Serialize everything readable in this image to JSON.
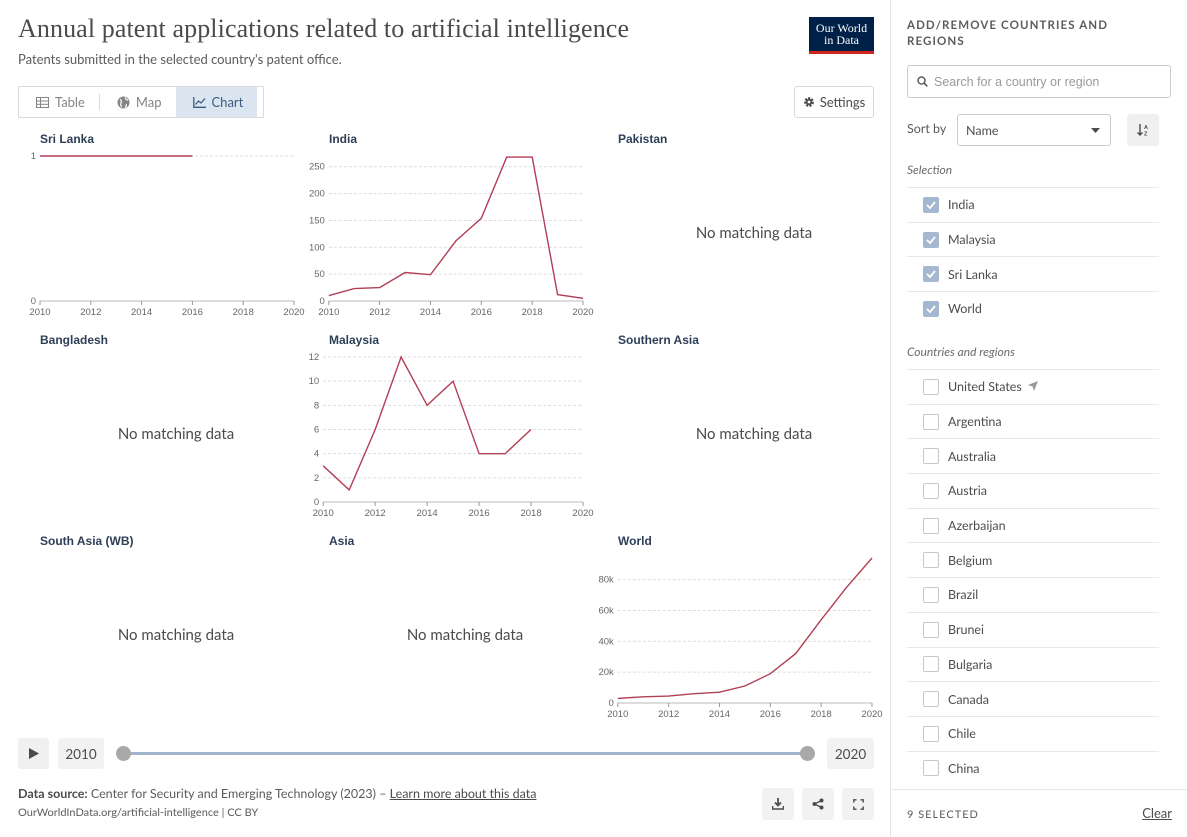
{
  "header": {
    "title": "Annual patent applications related to artificial intelligence",
    "subtitle": "Patents submitted in the selected country's patent office.",
    "logo_line1": "Our World",
    "logo_line2": "in Data"
  },
  "tabs": [
    {
      "label": "Table",
      "icon": "table-icon",
      "active": false
    },
    {
      "label": "Map",
      "icon": "globe-icon",
      "active": false
    },
    {
      "label": "Chart",
      "icon": "line-chart-icon",
      "active": true
    }
  ],
  "settings_label": "Settings",
  "no_data_text": "No matching data",
  "line_color": "#b13f55",
  "chart_data": [
    {
      "type": "line",
      "title": "Sri Lanka",
      "x": [
        2010,
        2011,
        2012,
        2013,
        2014,
        2015,
        2016
      ],
      "y": [
        1,
        1,
        1,
        1,
        1,
        1,
        1
      ],
      "ylim": [
        0,
        1
      ],
      "yticks": [
        0,
        1
      ],
      "ytick_labels": [
        "0",
        "1"
      ],
      "xticks": [
        2010,
        2012,
        2014,
        2016,
        2018,
        2020
      ],
      "xlim": [
        2010,
        2020
      ]
    },
    {
      "type": "line",
      "title": "India",
      "x": [
        2010,
        2011,
        2012,
        2013,
        2014,
        2015,
        2016,
        2017,
        2018,
        2019,
        2020
      ],
      "y": [
        10,
        23,
        25,
        53,
        49,
        112,
        154,
        268,
        268,
        12,
        5
      ],
      "ylim": [
        0,
        270
      ],
      "yticks": [
        0,
        50,
        100,
        150,
        200,
        250
      ],
      "ytick_labels": [
        "0",
        "50",
        "100",
        "150",
        "200",
        "250"
      ],
      "xticks": [
        2010,
        2012,
        2014,
        2016,
        2018,
        2020
      ],
      "xlim": [
        2010,
        2020
      ]
    },
    {
      "type": "line",
      "title": "Pakistan",
      "x": [],
      "y": [],
      "no_data": true
    },
    {
      "type": "line",
      "title": "Bangladesh",
      "x": [],
      "y": [],
      "no_data": true
    },
    {
      "type": "line",
      "title": "Malaysia",
      "x": [
        2010,
        2011,
        2012,
        2013,
        2014,
        2015,
        2016,
        2017,
        2018
      ],
      "y": [
        3,
        1,
        6,
        12,
        8,
        10,
        4,
        4,
        6
      ],
      "ylim": [
        0,
        12
      ],
      "yticks": [
        0,
        2,
        4,
        6,
        8,
        10,
        12
      ],
      "ytick_labels": [
        "0",
        "2",
        "4",
        "6",
        "8",
        "10",
        "12"
      ],
      "xticks": [
        2010,
        2012,
        2014,
        2016,
        2018,
        2020
      ],
      "xlim": [
        2010,
        2020
      ]
    },
    {
      "type": "line",
      "title": "Southern Asia",
      "x": [],
      "y": [],
      "no_data": true
    },
    {
      "type": "line",
      "title": "South Asia (WB)",
      "x": [],
      "y": [],
      "no_data": true
    },
    {
      "type": "line",
      "title": "Asia",
      "x": [],
      "y": [],
      "no_data": true
    },
    {
      "type": "line",
      "title": "World",
      "x": [
        2010,
        2011,
        2012,
        2013,
        2014,
        2015,
        2016,
        2017,
        2018,
        2019,
        2020
      ],
      "y": [
        3000,
        4000,
        4500,
        6000,
        7000,
        11000,
        19000,
        32000,
        54000,
        75000,
        94000
      ],
      "ylim": [
        0,
        94000
      ],
      "yticks": [
        0,
        20000,
        40000,
        60000,
        80000
      ],
      "ytick_labels": [
        "0",
        "20k",
        "40k",
        "60k",
        "80k"
      ],
      "xticks": [
        2010,
        2012,
        2014,
        2016,
        2018,
        2020
      ],
      "xlim": [
        2010,
        2020
      ]
    }
  ],
  "timeline": {
    "start_year": "2010",
    "end_year": "2020"
  },
  "source": {
    "label": "Data source:",
    "text": "Center for Security and Emerging Technology (2023) – ",
    "link": "Learn more about this data",
    "license": "OurWorldInData.org/artificial-intelligence | CC BY"
  },
  "sidebar": {
    "heading": "Add/remove countries and regions",
    "search_placeholder": "Search for a country or region",
    "sort_label": "Sort by",
    "sort_value": "Name",
    "selection_label": "Selection",
    "selected": [
      "India",
      "Malaysia",
      "Sri Lanka",
      "World"
    ],
    "others_label": "Countries and regions",
    "others": [
      "United States",
      "Argentina",
      "Australia",
      "Austria",
      "Azerbaijan",
      "Belgium",
      "Brazil",
      "Brunei",
      "Bulgaria",
      "Canada",
      "Chile",
      "China"
    ],
    "selected_count": "9 selected",
    "clear_label": "Clear"
  }
}
